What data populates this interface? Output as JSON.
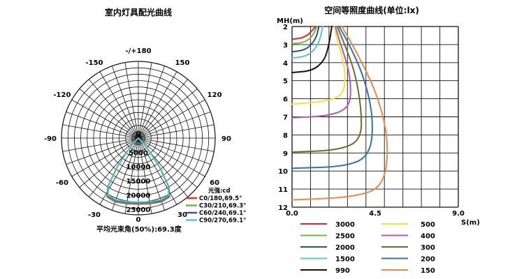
{
  "chart_data": [
    {
      "type": "polar",
      "title": "室内灯具配光曲线",
      "angle_labels": [
        "-/+180",
        "-150",
        "150",
        "-120",
        "120",
        "-90",
        "90",
        "-60",
        "60",
        "-30",
        "30",
        "0"
      ],
      "radial_labels": [
        "0",
        "5000",
        "10000",
        "15000",
        "20000",
        "25000"
      ],
      "unit_label": "光强:cd",
      "rmax": 27000,
      "beam_note": "平均光束角(50%):69.3度",
      "series": [
        {
          "name": "C0/180,69.5°",
          "color": "#e53024"
        },
        {
          "name": "C30/210,69.3°",
          "color": "#74b63e"
        },
        {
          "name": "C60/240,69.1°",
          "color": "#2c5a91"
        },
        {
          "name": "C90/270,69.1°",
          "color": "#56c3d3"
        }
      ],
      "polar_points": [
        {
          "angle": 0,
          "cd": 23000
        },
        {
          "angle": 10,
          "cd": 23200
        },
        {
          "angle": 20,
          "cd": 23600
        },
        {
          "angle": 28,
          "cd": 23200
        },
        {
          "angle": 32,
          "cd": 20000
        },
        {
          "angle": 36,
          "cd": 13000
        },
        {
          "angle": 40,
          "cd": 6000
        },
        {
          "angle": 45,
          "cd": 2000
        },
        {
          "angle": 50,
          "cd": 0
        }
      ],
      "series_scale": [
        1.01,
        1.0,
        0.99,
        0.98
      ]
    },
    {
      "type": "line",
      "title": "空间等照度曲线(单位:lx)",
      "ylabel": "MH(m)",
      "xlabel": "S(m)",
      "xlim": [
        0,
        9
      ],
      "ylim": [
        2,
        12
      ],
      "x_ticks": [
        "0.0",
        "4.5",
        "9.0"
      ],
      "y_ticks": [
        "2",
        "3",
        "4",
        "5",
        "6",
        "7",
        "8",
        "9",
        "10",
        "11",
        "12"
      ],
      "series": [
        {
          "name": "3000",
          "color": "#d8262d",
          "values": [
            [
              0,
              2.7
            ],
            [
              0.5,
              2.65
            ],
            [
              0.9,
              2.45
            ],
            [
              1.1,
              2.2
            ],
            [
              1.3,
              2.0
            ]
          ]
        },
        {
          "name": "2500",
          "color": "#77b83c",
          "values": [
            [
              0,
              2.95
            ],
            [
              0.6,
              2.9
            ],
            [
              1.0,
              2.65
            ],
            [
              1.2,
              2.35
            ],
            [
              1.35,
              2.0
            ]
          ]
        },
        {
          "name": "2000",
          "color": "#2c4f98",
          "values": [
            [
              0,
              3.4
            ],
            [
              0.7,
              3.3
            ],
            [
              1.1,
              2.95
            ],
            [
              1.35,
              2.5
            ],
            [
              1.45,
              2.0
            ]
          ]
        },
        {
          "name": "1500",
          "color": "#58c6d4",
          "values": [
            [
              0,
              3.75
            ],
            [
              0.8,
              3.65
            ],
            [
              1.3,
              3.2
            ],
            [
              1.55,
              2.6
            ],
            [
              1.65,
              2.0
            ]
          ]
        },
        {
          "name": "990",
          "color": "#111111",
          "values": [
            [
              0,
              4.55
            ],
            [
              1.1,
              4.45
            ],
            [
              1.75,
              3.9
            ],
            [
              2.0,
              3.0
            ],
            [
              2.15,
              2.0
            ]
          ]
        },
        {
          "name": "500",
          "color": "#f2e23a",
          "values": [
            [
              0,
              6.3
            ],
            [
              1.8,
              6.15
            ],
            [
              2.75,
              5.8
            ],
            [
              2.9,
              4.8
            ],
            [
              2.75,
              3.8
            ],
            [
              2.45,
              2.8
            ],
            [
              2.3,
              2.0
            ]
          ]
        },
        {
          "name": "400",
          "color": "#b45aa8",
          "values": [
            [
              0,
              7.05
            ],
            [
              2.0,
              6.95
            ],
            [
              3.1,
              6.5
            ],
            [
              3.2,
              5.3
            ],
            [
              3.0,
              4.1
            ],
            [
              2.6,
              2.9
            ],
            [
              2.35,
              2.0
            ]
          ]
        },
        {
          "name": "300",
          "color": "#6d6d2b",
          "values": [
            [
              0,
              8.95
            ],
            [
              2.5,
              8.85
            ],
            [
              3.75,
              8.3
            ],
            [
              3.75,
              6.5
            ],
            [
              3.4,
              4.5
            ],
            [
              2.85,
              3.0
            ],
            [
              2.45,
              2.0
            ]
          ]
        },
        {
          "name": "200",
          "color": "#2e73b5",
          "values": [
            [
              0,
              9.85
            ],
            [
              3.0,
              9.75
            ],
            [
              4.25,
              9.1
            ],
            [
              4.4,
              7.0
            ],
            [
              3.9,
              4.8
            ],
            [
              3.1,
              3.0
            ],
            [
              2.55,
              2.0
            ]
          ]
        },
        {
          "name": "150",
          "color": "#f08647",
          "values": [
            [
              0,
              11.6
            ],
            [
              3.3,
              11.45
            ],
            [
              4.95,
              10.9
            ],
            [
              5.25,
              8.5
            ],
            [
              4.7,
              6.0
            ],
            [
              3.7,
              3.8
            ],
            [
              2.7,
              2.0
            ]
          ]
        }
      ]
    }
  ]
}
